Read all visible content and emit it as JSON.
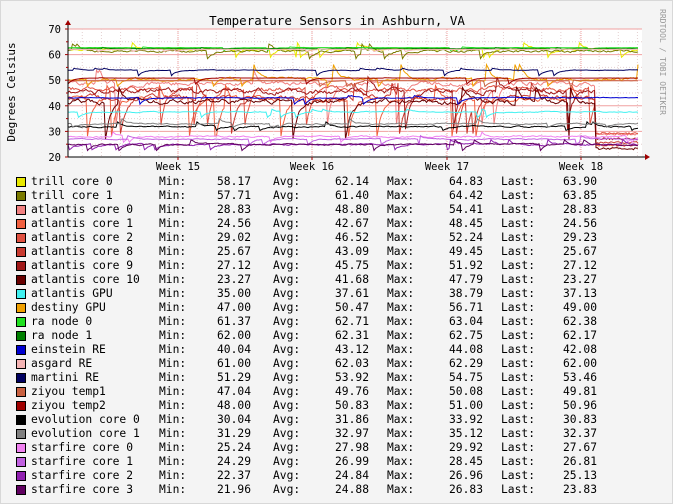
{
  "chart_data": {
    "type": "line",
    "title": "Temperature Sensors in Ashburn, VA",
    "ylabel": "Degrees Celsius",
    "watermark": "RRDTOOL / TOBI OETIKER",
    "ylim": [
      20,
      70
    ],
    "yticks": [
      "20",
      "30",
      "40",
      "50",
      "60",
      "70"
    ],
    "x_tick_labels": [
      "Week 15",
      "Week 16",
      "Week 17",
      "Week 18"
    ],
    "grid": true,
    "legend_columns": {
      "min": "Min:",
      "avg": "Avg:",
      "max": "Max:",
      "last": "Last:"
    },
    "series": [
      {
        "name": "trill core 0",
        "color": "#e8e800",
        "min": "58.17",
        "avg": "62.14",
        "max": "64.83",
        "last": "63.90"
      },
      {
        "name": "trill core 1",
        "color": "#7a7a00",
        "min": "57.71",
        "avg": "61.40",
        "max": "64.42",
        "last": "63.85"
      },
      {
        "name": "atlantis core 0",
        "color": "#f08080",
        "min": "28.83",
        "avg": "48.80",
        "max": "54.41",
        "last": "28.83"
      },
      {
        "name": "atlantis core 1",
        "color": "#f06040",
        "min": "24.56",
        "avg": "42.67",
        "max": "48.45",
        "last": "24.56"
      },
      {
        "name": "atlantis core 2",
        "color": "#e05040",
        "min": "29.02",
        "avg": "46.52",
        "max": "52.24",
        "last": "29.23"
      },
      {
        "name": "atlantis core 8",
        "color": "#c83a30",
        "min": "25.67",
        "avg": "43.09",
        "max": "49.45",
        "last": "25.67"
      },
      {
        "name": "atlantis core 9",
        "color": "#a01818",
        "min": "27.12",
        "avg": "45.75",
        "max": "51.92",
        "last": "27.12"
      },
      {
        "name": "atlantis core 10",
        "color": "#680000",
        "min": "23.27",
        "avg": "41.68",
        "max": "47.79",
        "last": "23.27"
      },
      {
        "name": "atlantis GPU",
        "color": "#40f0f0",
        "min": "35.00",
        "avg": "37.61",
        "max": "38.79",
        "last": "37.13"
      },
      {
        "name": "destiny GPU",
        "color": "#f0a000",
        "min": "47.00",
        "avg": "50.47",
        "max": "56.71",
        "last": "49.00"
      },
      {
        "name": "ra node 0",
        "color": "#20e020",
        "min": "61.37",
        "avg": "62.71",
        "max": "63.04",
        "last": "62.38"
      },
      {
        "name": "ra node 1",
        "color": "#008000",
        "min": "62.00",
        "avg": "62.31",
        "max": "62.75",
        "last": "62.17"
      },
      {
        "name": "einstein RE",
        "color": "#0000d0",
        "min": "40.04",
        "avg": "43.12",
        "max": "44.08",
        "last": "42.08"
      },
      {
        "name": "asgard RE",
        "color": "#f4b4b4",
        "min": "61.00",
        "avg": "62.03",
        "max": "62.29",
        "last": "62.00"
      },
      {
        "name": "martini RE",
        "color": "#000060",
        "min": "51.29",
        "avg": "53.92",
        "max": "54.75",
        "last": "53.46"
      },
      {
        "name": "ziyou temp1",
        "color": "#c86040",
        "min": "47.04",
        "avg": "49.76",
        "max": "50.08",
        "last": "49.81"
      },
      {
        "name": "ziyou temp2",
        "color": "#a00000",
        "min": "48.00",
        "avg": "50.83",
        "max": "51.00",
        "last": "50.96"
      },
      {
        "name": "evolution core 0",
        "color": "#000000",
        "min": "30.04",
        "avg": "31.86",
        "max": "33.92",
        "last": "30.83"
      },
      {
        "name": "evolution core 1",
        "color": "#808080",
        "min": "31.29",
        "avg": "32.97",
        "max": "35.12",
        "last": "32.37"
      },
      {
        "name": "starfire core 0",
        "color": "#f080f0",
        "min": "25.24",
        "avg": "27.98",
        "max": "29.92",
        "last": "27.67"
      },
      {
        "name": "starfire core 1",
        "color": "#c060e0",
        "min": "24.29",
        "avg": "26.99",
        "max": "28.45",
        "last": "26.81"
      },
      {
        "name": "starfire core 2",
        "color": "#9020b0",
        "min": "22.37",
        "avg": "24.84",
        "max": "26.96",
        "last": "25.13"
      },
      {
        "name": "starfire core 3",
        "color": "#600060",
        "min": "21.96",
        "avg": "24.88",
        "max": "26.83",
        "last": "23.83"
      }
    ]
  }
}
